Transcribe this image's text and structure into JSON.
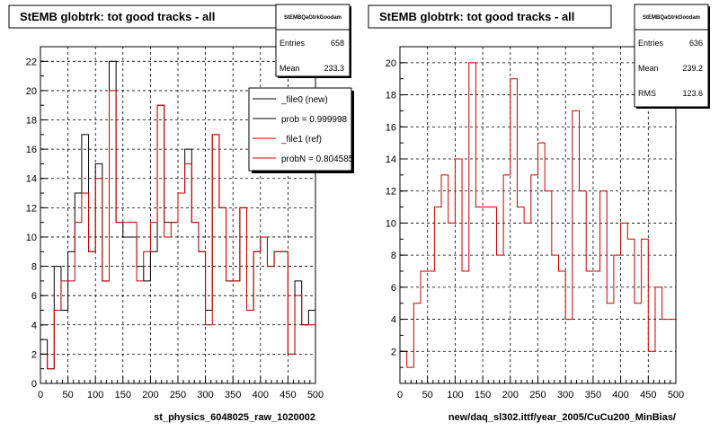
{
  "footer_note": "",
  "chart_data": [
    {
      "type": "histogram",
      "title": "StEMB globtrk: tot good tracks - all",
      "xlabel": "st_physics_6048025_raw_1020002",
      "ylabel": "",
      "xlim": [
        0,
        500
      ],
      "ylim": [
        0,
        23
      ],
      "x_ticks": [
        0,
        50,
        100,
        150,
        200,
        250,
        300,
        350,
        400,
        450,
        500
      ],
      "y_ticks": [
        0,
        2,
        4,
        6,
        8,
        10,
        12,
        14,
        16,
        18,
        20,
        22
      ],
      "grid": true,
      "bin_edges": [
        0,
        12.5,
        25,
        37.5,
        50,
        62.5,
        75,
        87.5,
        100,
        112.5,
        125,
        137.5,
        150,
        162.5,
        175,
        187.5,
        200,
        212.5,
        225,
        237.5,
        250,
        262.5,
        275,
        287.5,
        300,
        312.5,
        325,
        337.5,
        350,
        362.5,
        375,
        387.5,
        400,
        412.5,
        425,
        437.5,
        450,
        462.5,
        475,
        487.5,
        500
      ],
      "series": [
        {
          "name": "_file0 (new)",
          "color": "#000000",
          "values": [
            3,
            1,
            8,
            5,
            9,
            13,
            17,
            9,
            15,
            7,
            22,
            11,
            10,
            10,
            8,
            7,
            9,
            19,
            11,
            11,
            13,
            16,
            11,
            9,
            5,
            17,
            12,
            7,
            7,
            12,
            5,
            9,
            10,
            8,
            9,
            9,
            2,
            7,
            4,
            5
          ]
        },
        {
          "name": "_file1 (ref)",
          "color": "#cc0000",
          "values": [
            2,
            1,
            5,
            7,
            7,
            11,
            13,
            9,
            14,
            7,
            20,
            11,
            11,
            11,
            7,
            9,
            11,
            19,
            10,
            11,
            13,
            15,
            11,
            9,
            4,
            17,
            12,
            7,
            7,
            12,
            5,
            9,
            10,
            8,
            9,
            9,
            2,
            6,
            4,
            4
          ]
        }
      ],
      "legend": {
        "position": "top-right",
        "entries": [
          {
            "label": "_file0 (new)",
            "color": "#000000"
          },
          {
            "label": "prob = 0.999998",
            "color": "#000000"
          },
          {
            "label": "_file1 (ref)",
            "color": "#cc0000"
          },
          {
            "label": "probN = 0.804585",
            "color": "#cc0000"
          }
        ]
      },
      "stats": {
        "name": "StEMBQaGtrkGoodam",
        "rows": [
          {
            "label": "Entries",
            "value": "658"
          },
          {
            "label": "Mean",
            "value": "233.3"
          }
        ]
      }
    },
    {
      "type": "histogram",
      "title": "StEMB globtrk: tot good tracks - all",
      "xlabel": "new/daq_sl302.ittf/year_2005/CuCu200_MinBias/",
      "ylabel": "",
      "xlim": [
        0,
        500
      ],
      "ylim": [
        0,
        21
      ],
      "x_ticks": [
        0,
        50,
        100,
        150,
        200,
        250,
        300,
        350,
        400,
        450,
        500
      ],
      "y_ticks": [
        2,
        4,
        6,
        8,
        10,
        12,
        14,
        16,
        18,
        20
      ],
      "grid": true,
      "bin_edges": [
        0,
        12.5,
        25,
        37.5,
        50,
        62.5,
        75,
        87.5,
        100,
        112.5,
        125,
        137.5,
        150,
        162.5,
        175,
        187.5,
        200,
        212.5,
        225,
        237.5,
        250,
        262.5,
        275,
        287.5,
        300,
        312.5,
        325,
        337.5,
        350,
        362.5,
        375,
        387.5,
        400,
        412.5,
        425,
        437.5,
        450,
        462.5,
        475,
        487.5,
        500
      ],
      "series": [
        {
          "name": "",
          "color": "#cc0000",
          "values": [
            2,
            1,
            5,
            7,
            7,
            11,
            13,
            10,
            14,
            7,
            20,
            11,
            11,
            11,
            8,
            13,
            19,
            11,
            10,
            13,
            15,
            12,
            8,
            7,
            4,
            17,
            12,
            7,
            7,
            12,
            5,
            8,
            10,
            9,
            5,
            9,
            2,
            6,
            4,
            4
          ]
        }
      ],
      "legend": null,
      "stats": {
        "name": "StEMBQaGtrkGoodam",
        "rows": [
          {
            "label": "Entries",
            "value": "636"
          },
          {
            "label": "Mean",
            "value": "239.2"
          },
          {
            "label": "RMS",
            "value": "123.6"
          }
        ]
      }
    }
  ]
}
